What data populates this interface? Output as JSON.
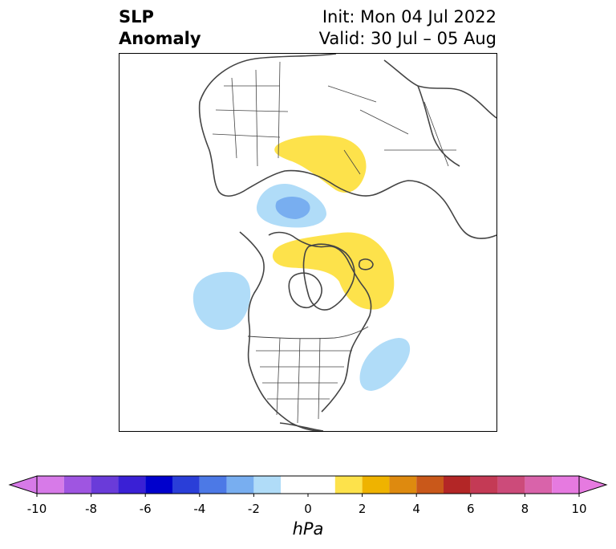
{
  "title": {
    "left_line1": "SLP",
    "left_line2": "Anomaly",
    "right_line1": "Init: Mon 04 Jul 2022",
    "right_line2": "Valid: 30 Jul – 05 Aug"
  },
  "colorbar": {
    "unit": "hPa",
    "ticks": [
      "-10",
      "-8",
      "-6",
      "-4",
      "-2",
      "0",
      "2",
      "4",
      "6",
      "8",
      "10"
    ],
    "bins": [
      {
        "lo": -10,
        "hi": -9,
        "color": "#d77ae8"
      },
      {
        "lo": -9,
        "hi": -8,
        "color": "#9f55e1"
      },
      {
        "lo": -8,
        "hi": -7,
        "color": "#6a3bd9"
      },
      {
        "lo": -7,
        "hi": -6,
        "color": "#3a20d5"
      },
      {
        "lo": -6,
        "hi": -5,
        "color": "#0000cc"
      },
      {
        "lo": -5,
        "hi": -4,
        "color": "#2a3ed8"
      },
      {
        "lo": -4,
        "hi": -3,
        "color": "#4c79e6"
      },
      {
        "lo": -3,
        "hi": -2,
        "color": "#78aef0"
      },
      {
        "lo": -2,
        "hi": -1,
        "color": "#b0dcf8"
      },
      {
        "lo": -1,
        "hi": 1,
        "color": "#ffffff"
      },
      {
        "lo": 1,
        "hi": 2,
        "color": "#fde24b"
      },
      {
        "lo": 2,
        "hi": 3,
        "color": "#efb300"
      },
      {
        "lo": 3,
        "hi": 4,
        "color": "#de8a0f"
      },
      {
        "lo": 4,
        "hi": 5,
        "color": "#c9581a"
      },
      {
        "lo": 5,
        "hi": 6,
        "color": "#b32626"
      },
      {
        "lo": 6,
        "hi": 7,
        "color": "#c43a55"
      },
      {
        "lo": 7,
        "hi": 8,
        "color": "#cc4b7a"
      },
      {
        "lo": 8,
        "hi": 9,
        "color": "#d963aa"
      },
      {
        "lo": 9,
        "hi": 10,
        "color": "#e67ae0"
      }
    ],
    "extend_low_color": "#d77ae8",
    "extend_high_color": "#e67ae0"
  },
  "map": {
    "projection": "north-polar-stereographic",
    "anomalies": [
      {
        "name": "siberia-positive",
        "level_hpa": 1.5,
        "color": "#fde24b"
      },
      {
        "name": "beaufort-negative",
        "level_hpa": -1.5,
        "color": "#b0dcf8"
      },
      {
        "name": "beaufort-negative-core",
        "level_hpa": -2.5,
        "color": "#78aef0"
      },
      {
        "name": "greenland-positive",
        "level_hpa": 1.5,
        "color": "#fde24b"
      },
      {
        "name": "north-pacific-negative",
        "level_hpa": -1.5,
        "color": "#b0dcf8"
      },
      {
        "name": "north-atlantic-negative",
        "level_hpa": -1.5,
        "color": "#b0dcf8"
      }
    ],
    "coastline_color": "#444444"
  }
}
